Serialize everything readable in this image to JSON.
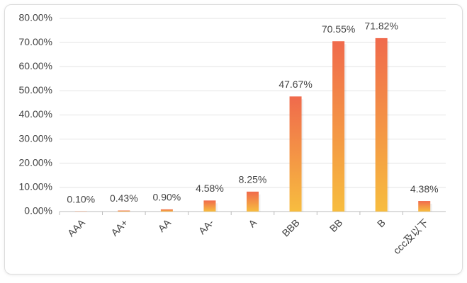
{
  "chart_data": {
    "type": "bar",
    "categories": [
      "AAA",
      "AA+",
      "AA",
      "AA-",
      "A",
      "BBB",
      "BB",
      "B",
      "ccc及以下"
    ],
    "values": [
      0.1,
      0.43,
      0.9,
      4.58,
      8.25,
      47.67,
      70.55,
      71.82,
      4.38
    ],
    "value_labels": [
      "0.10%",
      "0.43%",
      "0.90%",
      "4.58%",
      "8.25%",
      "47.67%",
      "70.55%",
      "71.82%",
      "4.38%"
    ],
    "colors": [
      "#f06a4c",
      "#f7bd3f"
    ],
    "ylim": [
      0,
      80
    ],
    "yticks": [
      {
        "value": 0,
        "label": "0.00%"
      },
      {
        "value": 10,
        "label": "10.00%"
      },
      {
        "value": 20,
        "label": "20.00%"
      },
      {
        "value": 30,
        "label": "30.00%"
      },
      {
        "value": 40,
        "label": "40.00%"
      },
      {
        "value": 50,
        "label": "50.00%"
      },
      {
        "value": 60,
        "label": "60.00%"
      },
      {
        "value": 70,
        "label": "70.00%"
      },
      {
        "value": 80,
        "label": "80.00%"
      }
    ],
    "grid": true
  }
}
